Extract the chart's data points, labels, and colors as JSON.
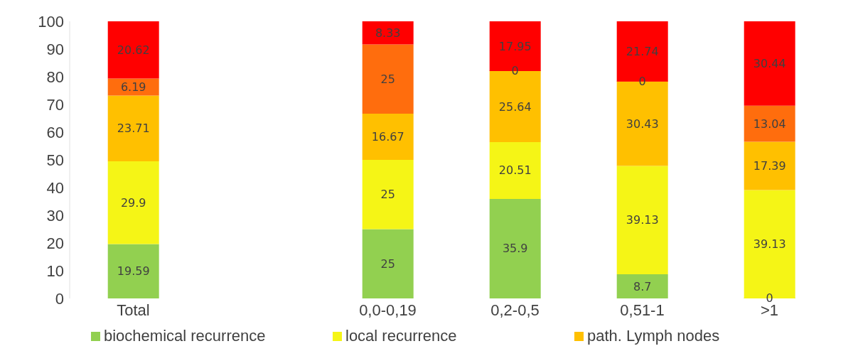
{
  "chart_data": {
    "type": "bar",
    "stacked": true,
    "categories": [
      "Total",
      null,
      "0,0-0,19",
      "0,2-0,5",
      "0,51-1",
      ">1"
    ],
    "series": [
      {
        "name": "biochemical recurrence",
        "color": "#92d050",
        "values": [
          19.59,
          null,
          25,
          35.9,
          8.7,
          0
        ]
      },
      {
        "name": "local recurrence",
        "color": "#f5f516",
        "values": [
          29.9,
          null,
          25,
          20.51,
          39.13,
          39.13
        ]
      },
      {
        "name": "path. Lymph nodes",
        "color": "#ffc000",
        "values": [
          23.71,
          null,
          16.67,
          25.64,
          30.43,
          17.39
        ]
      },
      {
        "color": "#ff6d0d",
        "values": [
          6.19,
          null,
          25,
          0,
          0,
          13.04
        ]
      },
      {
        "color": "#ff0000",
        "values": [
          20.62,
          null,
          8.33,
          17.95,
          21.74,
          30.44
        ]
      }
    ],
    "ylim": [
      0,
      100
    ],
    "yticks": [
      0,
      10,
      20,
      30,
      40,
      50,
      60,
      70,
      80,
      90,
      100
    ],
    "grid": false,
    "legend": "bottom",
    "data_labels": true
  }
}
